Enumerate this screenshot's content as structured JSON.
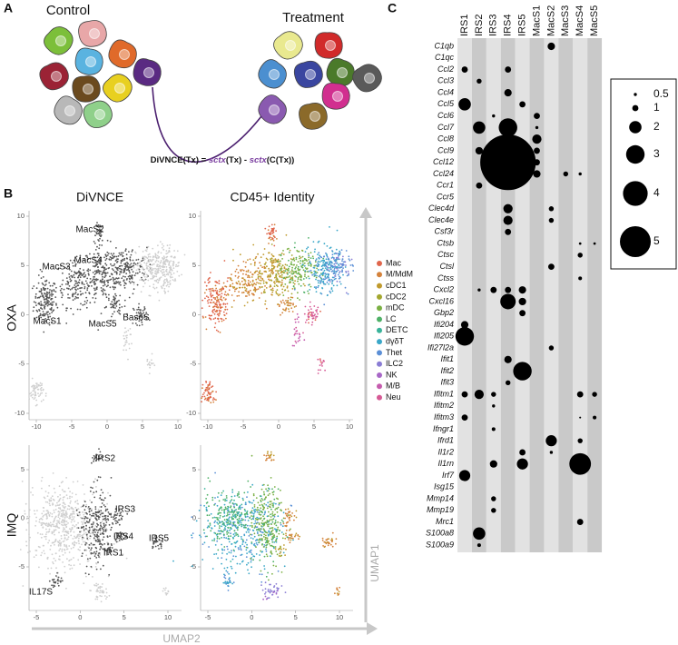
{
  "panel_labels": [
    "A",
    "B",
    "C"
  ],
  "panel_a": {
    "control": "Control",
    "treatment": "Treatment",
    "formula": [
      "DiVNCE(Tx) = ",
      "sctx",
      "(Tx) - ",
      "sctx",
      "(C(Tx))"
    ]
  },
  "panel_b": {
    "titles": [
      "DiVNCE",
      "CD45+ Identity"
    ],
    "rows": [
      "OXA",
      "IMQ"
    ],
    "x_axis": "UMAP2",
    "y_axis": "UMAP1",
    "oxa_xticks": [
      -10,
      -5,
      0,
      5,
      10
    ],
    "oxa_yticks": [
      -10,
      -5,
      0,
      5,
      10
    ],
    "imq_xticks": [
      -5,
      0,
      5,
      10
    ],
    "imq_yticks": [
      -5,
      0,
      5
    ],
    "oxa_clusters": [
      "MacS2",
      "MacS3",
      "MacS4",
      "MacS1",
      "MacS5",
      "BasoS"
    ],
    "imq_clusters": [
      "IRS2",
      "IRS3",
      "IRS4",
      "IRS5",
      "IRS1",
      "IL17S"
    ],
    "legend": [
      {
        "name": "Mac",
        "color": "#e0664c"
      },
      {
        "name": "M/MdM",
        "color": "#d4823b"
      },
      {
        "name": "cDC1",
        "color": "#c09a2d"
      },
      {
        "name": "cDC2",
        "color": "#a3a72e"
      },
      {
        "name": "mDC",
        "color": "#7ab043"
      },
      {
        "name": "LC",
        "color": "#4fb167"
      },
      {
        "name": "DETC",
        "color": "#3ab39a"
      },
      {
        "name": "dγδT",
        "color": "#3aa7c8"
      },
      {
        "name": "Thet",
        "color": "#5b8fd6"
      },
      {
        "name": "ILC2",
        "color": "#8a7cd4"
      },
      {
        "name": "NK",
        "color": "#a867c7"
      },
      {
        "name": "M/B",
        "color": "#c55cae"
      },
      {
        "name": "Neu",
        "color": "#d65a95"
      }
    ]
  },
  "panel_c": {
    "columns": [
      "IRS1",
      "IRS2",
      "IRS3",
      "IRS4",
      "IRS5",
      "MacS1",
      "MacS2",
      "MacS3",
      "MacS4",
      "MacS5"
    ],
    "genes": [
      "C1qb",
      "C1qc",
      "Ccl2",
      "Ccl3",
      "Ccl4",
      "Ccl5",
      "Ccl6",
      "Ccl7",
      "Ccl8",
      "Ccl9",
      "Ccl12",
      "Ccl24",
      "Ccr1",
      "Ccr5",
      "Clec4d",
      "Clec4e",
      "Csf3r",
      "Ctsb",
      "Ctsc",
      "Ctsl",
      "Ctss",
      "Cxcl2",
      "Cxcl16",
      "Gbp2",
      "Ifi204",
      "Ifi205",
      "Ifi27l2a",
      "Ifit1",
      "Ifit2",
      "Ifit3",
      "Ifitm1",
      "Ifitm2",
      "Ifitm3",
      "Ifngr1",
      "Ifrd1",
      "Il1r2",
      "Il1rn",
      "Irf7",
      "Isg15",
      "Mmp14",
      "Mmp19",
      "Mrc1",
      "S100a8",
      "S100a9"
    ],
    "values": [
      [
        null,
        null,
        null,
        null,
        null,
        null,
        1.2,
        null,
        null,
        null
      ],
      [
        null,
        null,
        null,
        null,
        null,
        null,
        null,
        null,
        null,
        null
      ],
      [
        1,
        null,
        null,
        1,
        null,
        null,
        null,
        null,
        null,
        null
      ],
      [
        null,
        0.8,
        null,
        null,
        null,
        null,
        null,
        null,
        null,
        null
      ],
      [
        null,
        null,
        null,
        1.2,
        null,
        null,
        null,
        null,
        null,
        null
      ],
      [
        2,
        null,
        null,
        null,
        1,
        null,
        null,
        null,
        null,
        null
      ],
      [
        null,
        null,
        0.5,
        null,
        null,
        1,
        null,
        null,
        null,
        null
      ],
      [
        null,
        2,
        null,
        3,
        null,
        0.5,
        null,
        null,
        null,
        null
      ],
      [
        null,
        null,
        null,
        null,
        null,
        1.5,
        null,
        null,
        null,
        null
      ],
      [
        null,
        1.2,
        null,
        null,
        null,
        1,
        null,
        null,
        null,
        null
      ],
      [
        null,
        null,
        null,
        9,
        null,
        1,
        null,
        null,
        null,
        null
      ],
      [
        null,
        null,
        null,
        null,
        null,
        1.2,
        null,
        0.8,
        0.5,
        null
      ],
      [
        null,
        1,
        null,
        null,
        null,
        null,
        null,
        null,
        null,
        null
      ],
      [
        null,
        null,
        null,
        null,
        null,
        null,
        null,
        null,
        null,
        null
      ],
      [
        null,
        null,
        null,
        1.5,
        null,
        null,
        0.8,
        null,
        null,
        null
      ],
      [
        null,
        null,
        null,
        1.5,
        null,
        null,
        0.8,
        null,
        null,
        null
      ],
      [
        null,
        null,
        null,
        1,
        null,
        null,
        null,
        null,
        null,
        null
      ],
      [
        null,
        null,
        null,
        null,
        null,
        null,
        null,
        null,
        0.4,
        0.4
      ],
      [
        null,
        null,
        null,
        null,
        null,
        null,
        null,
        null,
        0.8,
        null
      ],
      [
        null,
        null,
        null,
        null,
        null,
        null,
        1,
        null,
        null,
        null
      ],
      [
        null,
        null,
        null,
        null,
        null,
        null,
        null,
        null,
        0.6,
        null
      ],
      [
        null,
        0.5,
        1,
        1,
        1.2,
        null,
        null,
        null,
        null,
        null
      ],
      [
        null,
        null,
        null,
        2.5,
        1.2,
        null,
        null,
        null,
        null,
        null
      ],
      [
        null,
        null,
        null,
        null,
        1,
        null,
        null,
        null,
        null,
        null
      ],
      [
        1.2,
        null,
        null,
        null,
        null,
        null,
        null,
        null,
        null,
        null
      ],
      [
        3,
        null,
        null,
        null,
        null,
        null,
        null,
        null,
        null,
        null
      ],
      [
        null,
        null,
        null,
        null,
        null,
        null,
        0.8,
        null,
        null,
        null
      ],
      [
        null,
        null,
        null,
        1.2,
        null,
        null,
        null,
        null,
        null,
        null
      ],
      [
        null,
        null,
        null,
        null,
        3,
        null,
        null,
        null,
        null,
        null
      ],
      [
        null,
        null,
        null,
        0.8,
        null,
        null,
        null,
        null,
        null,
        null
      ],
      [
        1,
        1.5,
        0.8,
        null,
        null,
        null,
        null,
        null,
        1,
        0.8
      ],
      [
        null,
        null,
        0.5,
        null,
        null,
        null,
        null,
        null,
        null,
        null
      ],
      [
        1,
        null,
        null,
        null,
        null,
        null,
        null,
        null,
        0.3,
        0.6
      ],
      [
        null,
        null,
        0.6,
        null,
        null,
        null,
        null,
        null,
        null,
        null
      ],
      [
        null,
        null,
        null,
        null,
        null,
        null,
        1.8,
        null,
        0.8,
        null
      ],
      [
        null,
        null,
        null,
        null,
        1,
        null,
        0.5,
        null,
        null,
        null
      ],
      [
        null,
        null,
        1.2,
        null,
        1.8,
        null,
        null,
        null,
        3.5,
        null
      ],
      [
        1.8,
        null,
        null,
        null,
        null,
        null,
        null,
        null,
        null,
        null
      ],
      [
        null,
        null,
        null,
        null,
        null,
        null,
        null,
        null,
        null,
        null
      ],
      [
        null,
        null,
        0.8,
        null,
        null,
        null,
        null,
        null,
        null,
        null
      ],
      [
        null,
        null,
        0.8,
        null,
        null,
        null,
        null,
        null,
        null,
        null
      ],
      [
        null,
        null,
        null,
        null,
        null,
        null,
        null,
        null,
        1,
        null
      ],
      [
        null,
        2,
        null,
        null,
        null,
        null,
        null,
        null,
        null,
        null
      ],
      [
        null,
        0.6,
        null,
        null,
        null,
        null,
        null,
        null,
        null,
        null
      ]
    ],
    "size_legend": [
      0.5,
      1,
      2,
      3,
      4,
      5
    ]
  }
}
